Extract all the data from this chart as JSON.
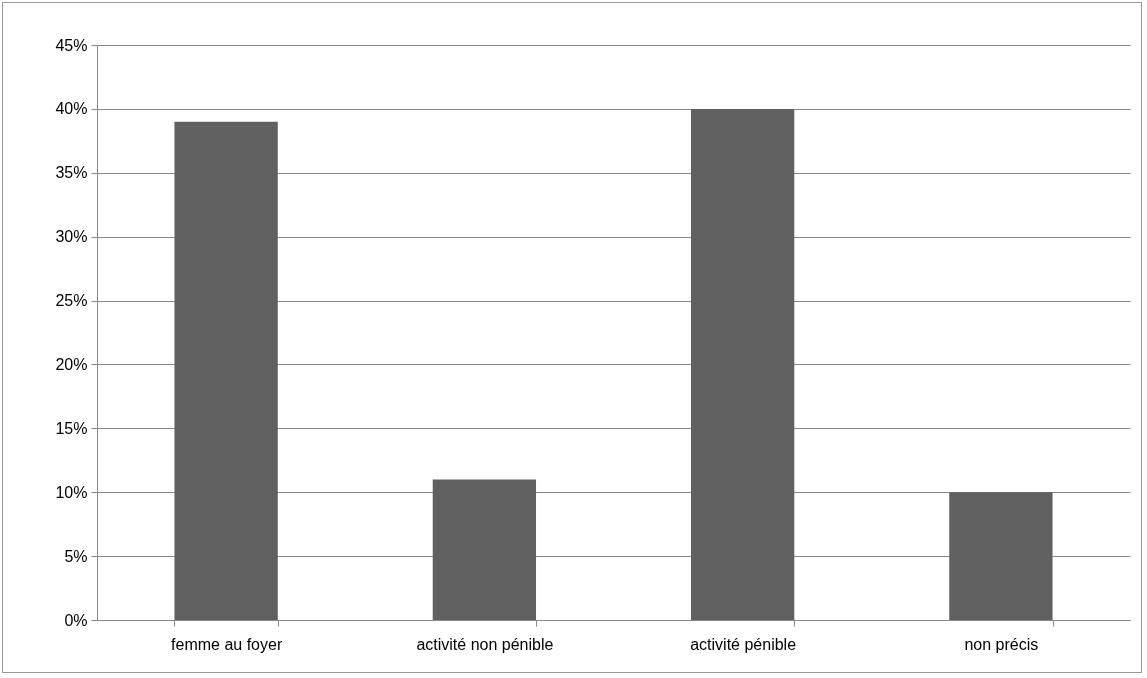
{
  "chart_data": {
    "type": "bar",
    "categories": [
      "femme au foyer",
      "activité non pénible",
      "activité pénible",
      "non précis"
    ],
    "values": [
      39,
      11,
      40,
      10
    ],
    "color": "#606060",
    "ylim": [
      0,
      45
    ],
    "yticks": [
      {
        "value": 0,
        "label": "0%"
      },
      {
        "value": 5,
        "label": "5%"
      },
      {
        "value": 10,
        "label": "10%"
      },
      {
        "value": 15,
        "label": "15%"
      },
      {
        "value": 20,
        "label": "20%"
      },
      {
        "value": 25,
        "label": "25%"
      },
      {
        "value": 30,
        "label": "30%"
      },
      {
        "value": 35,
        "label": "35%"
      },
      {
        "value": 40,
        "label": "40%"
      },
      {
        "value": 45,
        "label": "45%"
      }
    ],
    "grid": "y"
  }
}
